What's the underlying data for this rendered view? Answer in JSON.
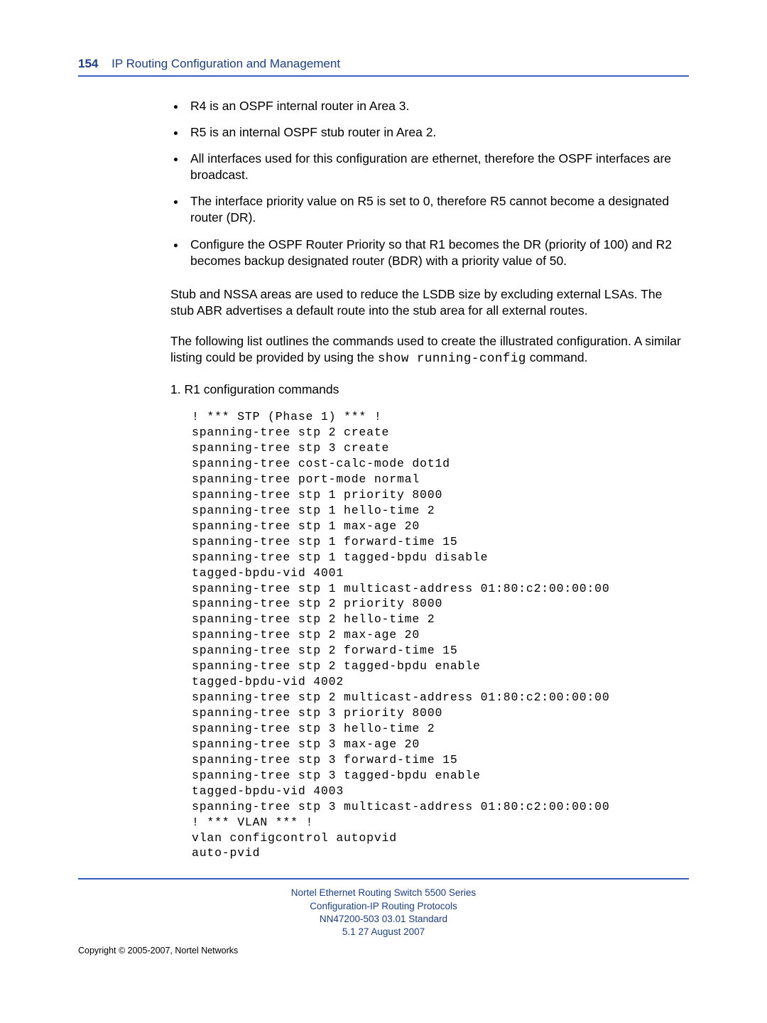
{
  "header": {
    "page_number": "154",
    "title": "IP Routing Configuration and Management"
  },
  "colors": {
    "accent": "#1a3e8c",
    "rule": "#3a5fbf",
    "text": "#000000",
    "background": "#ffffff"
  },
  "bullets": [
    "R4 is an OSPF internal router in Area 3.",
    "R5 is an internal OSPF stub router in Area 2.",
    "All interfaces used for this configuration are ethernet, therefore the OSPF interfaces are broadcast.",
    "The interface priority value on R5 is set to 0, therefore R5 cannot become a designated router (DR).",
    "Configure the OSPF Router Priority so that R1 becomes the DR (priority of 100) and R2 becomes backup designated router (BDR) with a priority value of 50."
  ],
  "para1": "Stub and NSSA areas are used to reduce the LSDB size by excluding external LSAs. The stub ABR advertises a default route into the stub area for all external routes.",
  "para2_a": "The following list outlines the commands used to create the illustrated configuration.  A similar listing could be provided by using the ",
  "para2_cmd": "show running-config",
  "para2_b": " command.",
  "step_label": "1.  R1 configuration commands",
  "code_lines": [
    "! *** STP (Phase 1) *** !",
    "spanning-tree stp 2 create",
    "spanning-tree stp 3 create",
    "spanning-tree cost-calc-mode dot1d",
    "spanning-tree port-mode normal",
    "spanning-tree stp 1 priority 8000",
    "spanning-tree stp 1 hello-time 2",
    "spanning-tree stp 1 max-age 20",
    "spanning-tree stp 1 forward-time 15",
    "spanning-tree stp 1 tagged-bpdu disable",
    "tagged-bpdu-vid 4001",
    "spanning-tree stp 1 multicast-address 01:80:c2:00:00:00",
    "spanning-tree stp 2 priority 8000",
    "spanning-tree stp 2 hello-time 2",
    "spanning-tree stp 2 max-age 20",
    "spanning-tree stp 2 forward-time 15",
    "spanning-tree stp 2 tagged-bpdu enable",
    "tagged-bpdu-vid 4002",
    "spanning-tree stp 2 multicast-address 01:80:c2:00:00:00",
    "spanning-tree stp 3 priority 8000",
    "spanning-tree stp 3 hello-time 2",
    "spanning-tree stp 3 max-age 20",
    "spanning-tree stp 3 forward-time 15",
    "spanning-tree stp 3 tagged-bpdu enable",
    "tagged-bpdu-vid 4003",
    "spanning-tree stp 3 multicast-address 01:80:c2:00:00:00",
    "! *** VLAN *** !",
    "vlan configcontrol autopvid",
    "auto-pvid"
  ],
  "footer": {
    "line1": "Nortel Ethernet Routing Switch 5500 Series",
    "line2": "Configuration-IP Routing Protocols",
    "line3": "NN47200-503   03.01   Standard",
    "line4": "5.1   27 August 2007",
    "copyright": "Copyright © 2005-2007, Nortel Networks"
  }
}
